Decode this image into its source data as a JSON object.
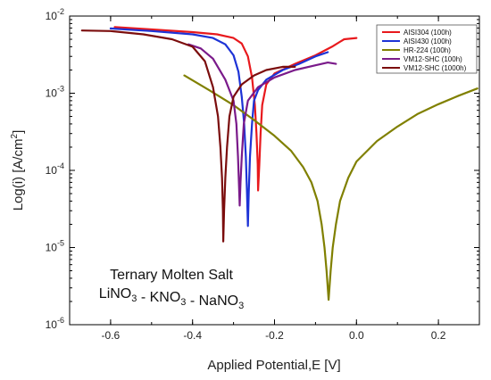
{
  "chart_data": {
    "type": "line",
    "xlabel": "Applied Potential,E [V]",
    "ylabel_main": "Log(i) [A/cm",
    "ylabel_sup": "2",
    "ylabel_end": "]",
    "xlim": [
      -0.7,
      0.3
    ],
    "ylim_log10": [
      -6,
      -2
    ],
    "x_ticks": [
      -0.6,
      -0.4,
      -0.2,
      0.0,
      0.2
    ],
    "x_tick_labels": [
      "-0.6",
      "-0.4",
      "-0.2",
      "0.0",
      "0.2"
    ],
    "y_ticks_exp": [
      -6,
      -5,
      -4,
      -3,
      -2
    ],
    "y_tick_labels": [
      {
        "base": "10",
        "exp": "-6"
      },
      {
        "base": "10",
        "exp": "-5"
      },
      {
        "base": "10",
        "exp": "-4"
      },
      {
        "base": "10",
        "exp": "-3"
      },
      {
        "base": "10",
        "exp": "-2"
      }
    ],
    "grid": false,
    "legend_position": "top-right",
    "annotation": {
      "line1": "Ternary Molten Salt",
      "line2_parts": [
        {
          "t": "LiNO",
          "s": "3"
        },
        {
          "t": " - KNO",
          "s": "3"
        },
        {
          "t": " - NaNO",
          "s": "3"
        }
      ]
    },
    "series": [
      {
        "name": "AISI304 (100h)",
        "color": "#e8191d",
        "ecorr": -0.24,
        "imin": 5.5e-05,
        "cathodic": [
          [
            -0.59,
            0.0072
          ],
          [
            -0.5,
            0.0067
          ],
          [
            -0.4,
            0.0062
          ],
          [
            -0.34,
            0.0058
          ],
          [
            -0.3,
            0.0052
          ],
          [
            -0.28,
            0.0044
          ],
          [
            -0.265,
            0.003
          ],
          [
            -0.255,
            0.0016
          ],
          [
            -0.248,
            0.0007
          ],
          [
            -0.244,
            0.0003
          ],
          [
            -0.241,
            0.00012
          ]
        ],
        "anodic": [
          [
            -0.237,
            0.00012
          ],
          [
            -0.234,
            0.0003
          ],
          [
            -0.23,
            0.0007
          ],
          [
            -0.22,
            0.0013
          ],
          [
            -0.2,
            0.0018
          ],
          [
            -0.15,
            0.0024
          ],
          [
            -0.1,
            0.0031
          ],
          [
            -0.06,
            0.004
          ],
          [
            -0.03,
            0.005
          ],
          [
            0.0,
            0.0052
          ]
        ]
      },
      {
        "name": "AISI430 (100h)",
        "color": "#1d33d6",
        "ecorr": -0.265,
        "imin": 1.9e-05,
        "cathodic": [
          [
            -0.6,
            0.0069
          ],
          [
            -0.5,
            0.0064
          ],
          [
            -0.4,
            0.0058
          ],
          [
            -0.35,
            0.0052
          ],
          [
            -0.32,
            0.0043
          ],
          [
            -0.3,
            0.0031
          ],
          [
            -0.288,
            0.0019
          ],
          [
            -0.28,
            0.0009
          ],
          [
            -0.274,
            0.0004
          ],
          [
            -0.27,
            0.00015
          ],
          [
            -0.267,
            5e-05
          ]
        ],
        "anodic": [
          [
            -0.263,
            5e-05
          ],
          [
            -0.26,
            0.00015
          ],
          [
            -0.255,
            0.0004
          ],
          [
            -0.25,
            0.0008
          ],
          [
            -0.24,
            0.0011
          ],
          [
            -0.22,
            0.0015
          ],
          [
            -0.18,
            0.002
          ],
          [
            -0.14,
            0.0024
          ],
          [
            -0.1,
            0.003
          ],
          [
            -0.07,
            0.0034
          ]
        ]
      },
      {
        "name": "HR-224 (100h)",
        "color": "#808000",
        "ecorr": -0.068,
        "imin": 2.1e-06,
        "cathodic": [
          [
            -0.42,
            0.0017
          ],
          [
            -0.36,
            0.0011
          ],
          [
            -0.3,
            0.0007
          ],
          [
            -0.25,
            0.00045
          ],
          [
            -0.2,
            0.00028
          ],
          [
            -0.16,
            0.00018
          ],
          [
            -0.13,
            0.00011
          ],
          [
            -0.11,
            7e-05
          ],
          [
            -0.095,
            4e-05
          ],
          [
            -0.085,
            2e-05
          ],
          [
            -0.078,
            1e-05
          ],
          [
            -0.073,
            5e-06
          ]
        ],
        "anodic": [
          [
            -0.063,
            5e-06
          ],
          [
            -0.058,
            1e-05
          ],
          [
            -0.05,
            2e-05
          ],
          [
            -0.04,
            4e-05
          ],
          [
            -0.02,
            8e-05
          ],
          [
            0.0,
            0.00013
          ],
          [
            0.05,
            0.00024
          ],
          [
            0.1,
            0.00037
          ],
          [
            0.15,
            0.00054
          ],
          [
            0.2,
            0.00072
          ],
          [
            0.25,
            0.00093
          ],
          [
            0.295,
            0.00115
          ]
        ]
      },
      {
        "name": "VM12-SHC (100h)",
        "color": "#7a1a8a",
        "ecorr": -0.285,
        "imin": 3.5e-05,
        "cathodic": [
          [
            -0.41,
            0.0043
          ],
          [
            -0.38,
            0.0038
          ],
          [
            -0.35,
            0.0028
          ],
          [
            -0.32,
            0.0015
          ],
          [
            -0.3,
            0.0008
          ],
          [
            -0.293,
            0.0004
          ],
          [
            -0.289,
            0.00015
          ],
          [
            -0.287,
            7e-05
          ]
        ],
        "anodic": [
          [
            -0.283,
            7e-05
          ],
          [
            -0.28,
            0.00015
          ],
          [
            -0.275,
            0.0004
          ],
          [
            -0.265,
            0.0008
          ],
          [
            -0.24,
            0.0012
          ],
          [
            -0.2,
            0.0016
          ],
          [
            -0.15,
            0.002
          ],
          [
            -0.1,
            0.0023
          ],
          [
            -0.07,
            0.0025
          ],
          [
            -0.05,
            0.0024
          ]
        ]
      },
      {
        "name": "VM12-SHC (1000h)",
        "color": "#7b0d0d",
        "ecorr": -0.325,
        "imin": 1.2e-05,
        "cathodic": [
          [
            -0.67,
            0.0065
          ],
          [
            -0.6,
            0.0064
          ],
          [
            -0.52,
            0.0058
          ],
          [
            -0.45,
            0.005
          ],
          [
            -0.4,
            0.004
          ],
          [
            -0.37,
            0.0026
          ],
          [
            -0.35,
            0.0012
          ],
          [
            -0.338,
            0.0005
          ],
          [
            -0.332,
            0.0002
          ],
          [
            -0.328,
            8e-05
          ],
          [
            -0.326,
            3e-05
          ]
        ],
        "anodic": [
          [
            -0.323,
            3e-05
          ],
          [
            -0.32,
            8e-05
          ],
          [
            -0.316,
            0.0002
          ],
          [
            -0.31,
            0.0005
          ],
          [
            -0.3,
            0.0009
          ],
          [
            -0.28,
            0.0013
          ],
          [
            -0.25,
            0.0017
          ],
          [
            -0.22,
            0.002
          ],
          [
            -0.18,
            0.0022
          ],
          [
            -0.15,
            0.0022
          ]
        ]
      }
    ]
  }
}
